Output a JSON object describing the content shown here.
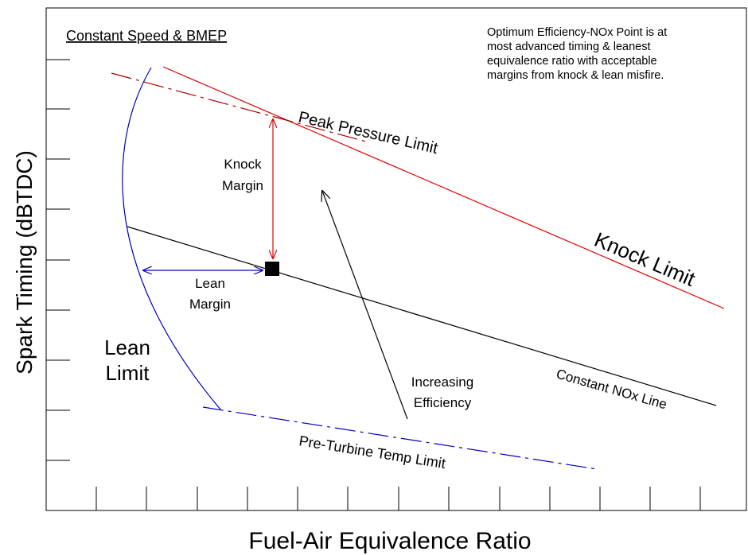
{
  "title": "Constant Speed & BMEP",
  "note": [
    "Optimum Efficiency-NOx  Point is at",
    "most advanced timing & leanest",
    "equivalence ratio with acceptable",
    "margins from knock & lean misfire."
  ],
  "y_axis_label": "Spark Timing (dBTDC)",
  "x_axis_label": "Fuel-Air Equivalence Ratio",
  "labels": {
    "peak_pressure": "Peak Pressure Limit",
    "knock_limit": "Knock Limit",
    "knock_margin": [
      "Knock",
      "Margin"
    ],
    "lean_margin": [
      "Lean",
      "Margin"
    ],
    "lean_limit": [
      "Lean",
      "Limit"
    ],
    "efficiency": [
      "Increasing",
      "Efficiency"
    ],
    "nox_line": "Constant NOx Line",
    "pre_turbine": "Pre-Turbine Temp Limit"
  }
}
